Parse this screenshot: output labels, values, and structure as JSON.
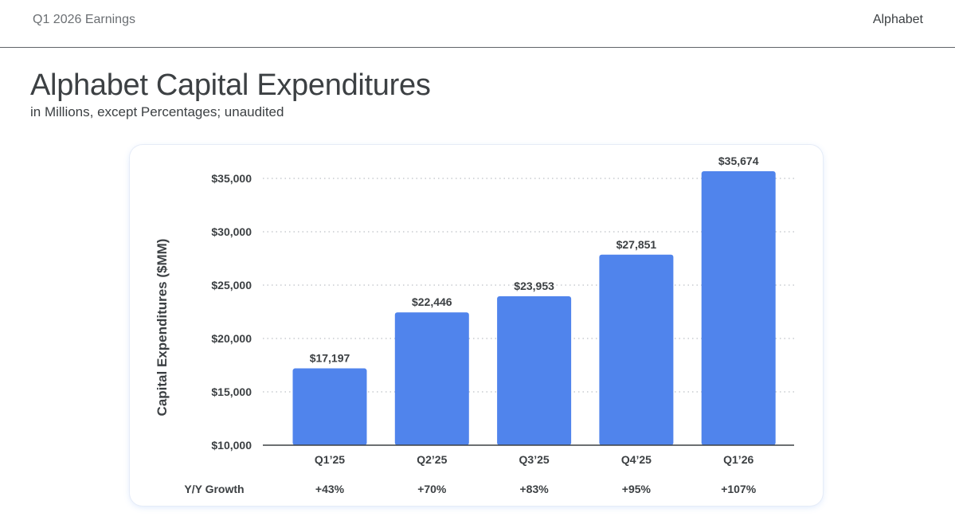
{
  "header": {
    "left_text": "Q1 2026 Earnings",
    "right_text": "Alphabet"
  },
  "title": "Alphabet Capital Expenditures",
  "subtitle": "in Millions, except Percentages; unaudited",
  "chart_data": {
    "type": "bar",
    "categories": [
      "Q1’25",
      "Q2’25",
      "Q3’25",
      "Q4’25",
      "Q1’26"
    ],
    "values": [
      17197,
      22446,
      23953,
      27851,
      35674
    ],
    "data_labels": [
      "$17,197",
      "$22,446",
      "$23,953",
      "$27,851",
      "$35,674"
    ],
    "ylabel": "Capital Expenditures ($MM)",
    "ylim": [
      10000,
      35674
    ],
    "yticks": [
      10000,
      15000,
      20000,
      25000,
      30000,
      35000
    ],
    "ytick_labels": [
      "$10,000",
      "$15,000",
      "$20,000",
      "$25,000",
      "$30,000",
      "$35,000"
    ],
    "grid": "dotted horizontal",
    "bar_color": "#5084EC",
    "growth": {
      "label": "Y/Y Growth",
      "values": [
        "+43%",
        "+70%",
        "+83%",
        "+95%",
        "+107%"
      ]
    }
  }
}
